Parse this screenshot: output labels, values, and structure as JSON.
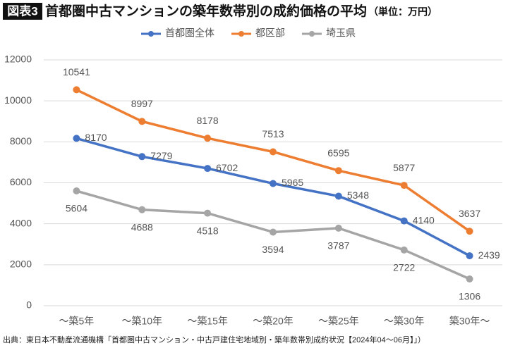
{
  "chart_data": {
    "type": "line",
    "figure_label": "図表3",
    "title": "首都圏中古マンションの築年数帯別の成約価格の平均",
    "subtitle": "（単位：万円）",
    "note": "出典：東日本不動産流通機構「首都圏中古マンション・中古戸建住宅地域別・築年数帯別成約状況【2024年04～06月】」）",
    "categories": [
      "～築5年",
      "～築10年",
      "～築15年",
      "～築20年",
      "～築25年",
      "～築30年",
      "築30年～"
    ],
    "series": [
      {
        "name": "首都圏全体",
        "color": "#4472c4",
        "values": [
          8170,
          7279,
          6702,
          5965,
          5348,
          4140,
          2439
        ]
      },
      {
        "name": "都区部",
        "color": "#ed7d31",
        "values": [
          10541,
          8997,
          8178,
          7513,
          6595,
          5877,
          3637
        ]
      },
      {
        "name": "埼玉県",
        "color": "#a5a5a5",
        "values": [
          5604,
          4688,
          4518,
          3594,
          3787,
          2722,
          1306
        ]
      }
    ],
    "ylim": [
      0,
      12000
    ],
    "yticks": [
      0,
      2000,
      4000,
      6000,
      8000,
      10000,
      12000
    ],
    "grid": true
  }
}
